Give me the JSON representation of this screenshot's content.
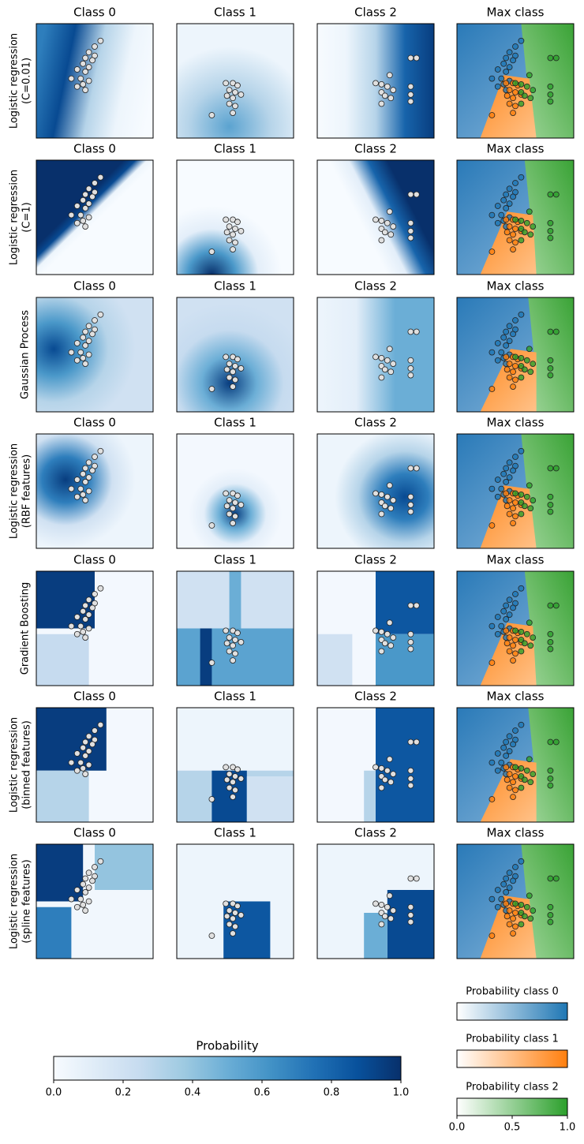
{
  "figure": {
    "column_titles": [
      "Class 0",
      "Class 1",
      "Class 2",
      "Max class"
    ],
    "rows": [
      {
        "label": [
          "Logistic regression",
          "(C=0.01)"
        ]
      },
      {
        "label": [
          "Logistic regression",
          "(C=1)"
        ]
      },
      {
        "label": [
          "Gaussian Process"
        ]
      },
      {
        "label": [
          "Logistic regression",
          "(RBF features)"
        ]
      },
      {
        "label": [
          "Gradient Boosting"
        ]
      },
      {
        "label": [
          "Logistic regression",
          "(binned features)"
        ]
      },
      {
        "label": [
          "Logistic regression",
          "(spline features)"
        ]
      }
    ],
    "points": {
      "x": [
        0.55,
        0.5,
        0.45,
        0.5,
        0.42,
        0.48,
        0.4,
        0.45,
        0.35,
        0.42,
        0.3,
        0.38,
        0.45,
        0.4,
        0.35,
        0.42,
        0.42,
        0.48,
        0.52,
        0.45,
        0.5,
        0.43,
        0.48,
        0.55,
        0.45,
        0.5,
        0.48,
        0.3,
        0.8,
        0.85,
        0.62,
        0.5,
        0.55,
        0.6,
        0.65,
        0.55,
        0.58,
        0.63,
        0.8,
        0.8,
        0.8,
        0.55
      ],
      "y": [
        0.85,
        0.8,
        0.75,
        0.72,
        0.7,
        0.68,
        0.65,
        0.62,
        0.6,
        0.58,
        0.52,
        0.52,
        0.5,
        0.47,
        0.45,
        0.42,
        0.48,
        0.48,
        0.46,
        0.42,
        0.4,
        0.37,
        0.35,
        0.38,
        0.3,
        0.28,
        0.22,
        0.2,
        0.7,
        0.7,
        0.55,
        0.48,
        0.47,
        0.45,
        0.42,
        0.4,
        0.37,
        0.35,
        0.45,
        0.38,
        0.32,
        0.3
      ],
      "class": [
        0,
        0,
        0,
        0,
        0,
        0,
        0,
        0,
        0,
        0,
        0,
        0,
        0,
        0,
        0,
        0,
        1,
        1,
        1,
        1,
        1,
        1,
        1,
        1,
        1,
        1,
        1,
        1,
        2,
        2,
        2,
        2,
        2,
        2,
        2,
        2,
        2,
        2,
        2,
        2,
        2,
        2
      ]
    },
    "colorbar": {
      "title": "Probability",
      "xlim": [
        0,
        1
      ],
      "xticks": [
        {
          "value": 0,
          "label": "0.0"
        },
        {
          "value": 0.2,
          "label": "0.2"
        },
        {
          "value": 0.4,
          "label": "0.4"
        },
        {
          "value": 0.6,
          "label": "0.6"
        },
        {
          "value": 0.8,
          "label": "0.8"
        },
        {
          "value": 1,
          "label": "1.0"
        }
      ]
    },
    "class_colorbars": [
      {
        "title": "Probability class 0",
        "color": "#1f77b4"
      },
      {
        "title": "Probability class 1",
        "color": "#ff7f0e"
      },
      {
        "title": "Probability class 2",
        "color": "#2ca02c"
      }
    ],
    "class_xlim": [
      0,
      1
    ],
    "class_xticks": [
      {
        "value": 0,
        "label": "0.0"
      },
      {
        "value": 0.5,
        "label": "0.5"
      },
      {
        "value": 1,
        "label": "1.0"
      }
    ]
  }
}
